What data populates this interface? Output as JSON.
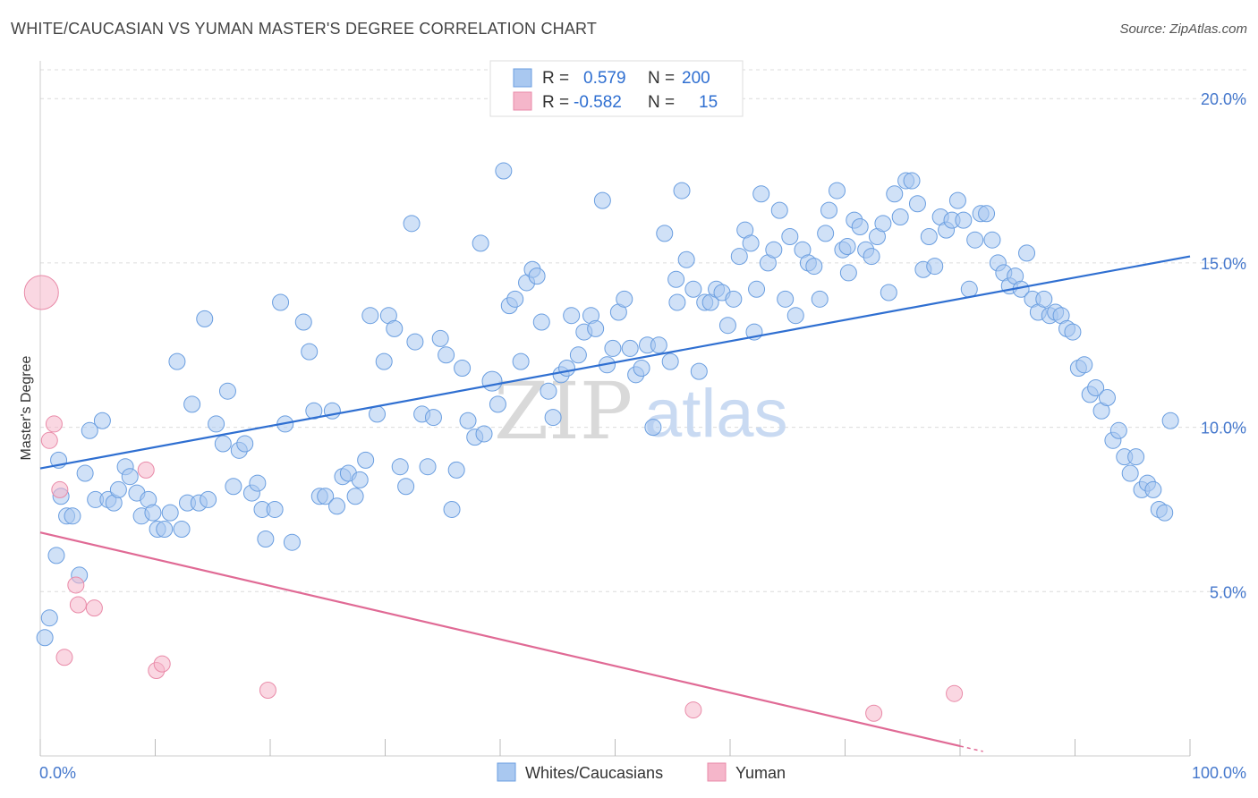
{
  "title": "WHITE/CAUCASIAN VS YUMAN MASTER'S DEGREE CORRELATION CHART",
  "source": "Source: ZipAtlas.com",
  "watermark": {
    "left": "ZIP",
    "right": "atlas"
  },
  "legend": {
    "rows": [
      {
        "r_label": "R =",
        "r_value": "0.579",
        "n_label": "N =",
        "n_value": "200",
        "color": "#a9c8f0"
      },
      {
        "r_label": "R =",
        "r_value": "-0.582",
        "n_label": "N =",
        "n_value": "15",
        "color": "#f5b6ca"
      }
    ]
  },
  "bottom_legend": [
    {
      "label": "Whites/Caucasians",
      "color": "#a9c8f0"
    },
    {
      "label": "Yuman",
      "color": "#f5b6ca"
    }
  ],
  "chart_data": {
    "type": "scatter",
    "title": "WHITE/CAUCASIAN VS YUMAN MASTER'S DEGREE CORRELATION CHART",
    "xlabel": "",
    "ylabel": "Master's Degree",
    "xlim": [
      0,
      100
    ],
    "ylim": [
      0,
      20
    ],
    "x_tick_labels": [
      "0.0%",
      "100.0%"
    ],
    "y_ticks": [
      5,
      10,
      15,
      20
    ],
    "y_tick_labels": [
      "5.0%",
      "10.0%",
      "15.0%",
      "20.0%"
    ],
    "grid": true,
    "legend_position": "top-center",
    "series": [
      {
        "name": "Whites/Caucasians",
        "color": "#a9c8f0",
        "stroke": "#6a9ee0",
        "trend": {
          "x": [
            0,
            100
          ],
          "y": [
            8.75,
            15.2
          ],
          "color": "#2f6fd1"
        },
        "points": [
          [
            0.4,
            3.6
          ],
          [
            0.8,
            4.2
          ],
          [
            1.4,
            6.1
          ],
          [
            1.6,
            9.0
          ],
          [
            1.8,
            7.9
          ],
          [
            2.3,
            7.3
          ],
          [
            2.8,
            7.3
          ],
          [
            3.4,
            5.5
          ],
          [
            3.9,
            8.6
          ],
          [
            4.3,
            9.9
          ],
          [
            4.8,
            7.8
          ],
          [
            5.4,
            10.2
          ],
          [
            5.9,
            7.8
          ],
          [
            6.4,
            7.7
          ],
          [
            6.8,
            8.1
          ],
          [
            7.4,
            8.8
          ],
          [
            7.8,
            8.5
          ],
          [
            8.4,
            8.0
          ],
          [
            8.8,
            7.3
          ],
          [
            9.4,
            7.8
          ],
          [
            9.8,
            7.4
          ],
          [
            10.2,
            6.9
          ],
          [
            10.8,
            6.9
          ],
          [
            11.3,
            7.4
          ],
          [
            11.9,
            12.0
          ],
          [
            12.3,
            6.9
          ],
          [
            12.8,
            7.7
          ],
          [
            13.2,
            10.7
          ],
          [
            13.8,
            7.7
          ],
          [
            14.3,
            13.3
          ],
          [
            14.6,
            7.8
          ],
          [
            15.3,
            10.1
          ],
          [
            15.9,
            9.5
          ],
          [
            16.3,
            11.1
          ],
          [
            16.8,
            8.2
          ],
          [
            17.3,
            9.3
          ],
          [
            17.8,
            9.5
          ],
          [
            18.4,
            8.0
          ],
          [
            18.9,
            8.3
          ],
          [
            19.3,
            7.5
          ],
          [
            19.6,
            6.6
          ],
          [
            20.4,
            7.5
          ],
          [
            20.9,
            13.8
          ],
          [
            21.3,
            10.1
          ],
          [
            21.9,
            6.5
          ],
          [
            22.9,
            13.2
          ],
          [
            23.4,
            12.3
          ],
          [
            23.8,
            10.5
          ],
          [
            24.3,
            7.9
          ],
          [
            24.8,
            7.9
          ],
          [
            25.4,
            10.5
          ],
          [
            25.8,
            7.6
          ],
          [
            26.3,
            8.5
          ],
          [
            26.8,
            8.6
          ],
          [
            27.4,
            7.9
          ],
          [
            27.8,
            8.4
          ],
          [
            28.3,
            9.0
          ],
          [
            28.7,
            13.4
          ],
          [
            29.3,
            10.4
          ],
          [
            29.9,
            12.0
          ],
          [
            30.3,
            13.4
          ],
          [
            30.8,
            13.0
          ],
          [
            31.3,
            8.8
          ],
          [
            31.8,
            8.2
          ],
          [
            32.3,
            16.2
          ],
          [
            32.6,
            12.6
          ],
          [
            33.2,
            10.4
          ],
          [
            33.7,
            8.8
          ],
          [
            34.2,
            10.3
          ],
          [
            34.8,
            12.7
          ],
          [
            35.3,
            12.2
          ],
          [
            35.8,
            7.5
          ],
          [
            36.2,
            8.7
          ],
          [
            36.7,
            11.8
          ],
          [
            37.2,
            10.2
          ],
          [
            37.8,
            9.7
          ],
          [
            38.3,
            15.6
          ],
          [
            38.6,
            9.8
          ],
          [
            39.3,
            11.4
          ],
          [
            39.8,
            10.7
          ],
          [
            40.3,
            17.8
          ],
          [
            40.8,
            13.7
          ],
          [
            41.3,
            13.9
          ],
          [
            41.8,
            12.0
          ],
          [
            42.3,
            14.4
          ],
          [
            42.8,
            14.8
          ],
          [
            43.2,
            14.6
          ],
          [
            43.6,
            13.2
          ],
          [
            44.2,
            11.1
          ],
          [
            44.6,
            10.3
          ],
          [
            45.3,
            11.6
          ],
          [
            45.8,
            11.8
          ],
          [
            46.2,
            13.4
          ],
          [
            46.8,
            12.2
          ],
          [
            47.3,
            12.9
          ],
          [
            47.9,
            13.4
          ],
          [
            48.3,
            13.0
          ],
          [
            48.9,
            16.9
          ],
          [
            49.3,
            11.9
          ],
          [
            49.8,
            12.4
          ],
          [
            50.3,
            13.5
          ],
          [
            50.8,
            13.9
          ],
          [
            51.3,
            12.4
          ],
          [
            51.8,
            11.6
          ],
          [
            52.3,
            11.8
          ],
          [
            52.8,
            12.5
          ],
          [
            53.3,
            10.0
          ],
          [
            53.8,
            12.5
          ],
          [
            54.3,
            15.9
          ],
          [
            54.8,
            12.0
          ],
          [
            55.3,
            14.5
          ],
          [
            55.8,
            17.2
          ],
          [
            56.2,
            15.1
          ],
          [
            56.8,
            14.2
          ],
          [
            57.3,
            11.7
          ],
          [
            57.8,
            13.8
          ],
          [
            58.3,
            13.8
          ],
          [
            58.8,
            14.2
          ],
          [
            59.3,
            14.1
          ],
          [
            59.8,
            13.1
          ],
          [
            60.3,
            13.9
          ],
          [
            60.8,
            15.2
          ],
          [
            61.3,
            16.0
          ],
          [
            61.8,
            15.6
          ],
          [
            62.3,
            14.2
          ],
          [
            62.7,
            17.1
          ],
          [
            63.3,
            15.0
          ],
          [
            63.8,
            15.4
          ],
          [
            64.3,
            16.6
          ],
          [
            64.8,
            13.9
          ],
          [
            65.2,
            15.8
          ],
          [
            65.7,
            13.4
          ],
          [
            66.3,
            15.4
          ],
          [
            66.8,
            15.0
          ],
          [
            67.3,
            14.9
          ],
          [
            67.8,
            13.9
          ],
          [
            68.3,
            15.9
          ],
          [
            68.6,
            16.6
          ],
          [
            69.3,
            17.2
          ],
          [
            69.8,
            15.4
          ],
          [
            70.3,
            14.7
          ],
          [
            70.8,
            16.3
          ],
          [
            71.3,
            16.1
          ],
          [
            71.8,
            15.4
          ],
          [
            72.3,
            15.2
          ],
          [
            72.8,
            15.8
          ],
          [
            73.3,
            16.2
          ],
          [
            73.8,
            14.1
          ],
          [
            74.3,
            17.1
          ],
          [
            74.8,
            16.4
          ],
          [
            75.3,
            17.5
          ],
          [
            75.8,
            17.5
          ],
          [
            76.3,
            16.8
          ],
          [
            76.8,
            14.8
          ],
          [
            77.3,
            15.8
          ],
          [
            77.8,
            14.9
          ],
          [
            78.3,
            16.4
          ],
          [
            78.8,
            16.0
          ],
          [
            79.3,
            16.3
          ],
          [
            79.8,
            16.9
          ],
          [
            80.3,
            16.3
          ],
          [
            80.8,
            14.2
          ],
          [
            81.3,
            15.7
          ],
          [
            81.8,
            16.5
          ],
          [
            82.3,
            16.5
          ],
          [
            82.8,
            15.7
          ],
          [
            83.3,
            15.0
          ],
          [
            83.8,
            14.7
          ],
          [
            84.3,
            14.3
          ],
          [
            84.8,
            14.6
          ],
          [
            85.3,
            14.2
          ],
          [
            85.8,
            15.3
          ],
          [
            86.3,
            13.9
          ],
          [
            86.8,
            13.5
          ],
          [
            87.3,
            13.9
          ],
          [
            87.8,
            13.4
          ],
          [
            88.3,
            13.5
          ],
          [
            88.8,
            13.4
          ],
          [
            89.3,
            13.0
          ],
          [
            89.8,
            12.9
          ],
          [
            90.3,
            11.8
          ],
          [
            90.8,
            11.9
          ],
          [
            91.3,
            11.0
          ],
          [
            91.8,
            11.2
          ],
          [
            92.3,
            10.5
          ],
          [
            92.8,
            10.9
          ],
          [
            93.3,
            9.6
          ],
          [
            93.8,
            9.9
          ],
          [
            94.3,
            9.1
          ],
          [
            94.8,
            8.6
          ],
          [
            95.3,
            9.1
          ],
          [
            95.8,
            8.1
          ],
          [
            96.3,
            8.3
          ],
          [
            96.8,
            8.1
          ],
          [
            97.3,
            7.5
          ],
          [
            97.8,
            7.4
          ],
          [
            98.3,
            10.2
          ],
          [
            55.4,
            13.8
          ],
          [
            62.1,
            12.9
          ],
          [
            70.2,
            15.5
          ]
        ]
      },
      {
        "name": "Yuman",
        "color": "#f5b6ca",
        "stroke": "#e98aa8",
        "trend": {
          "x": [
            0,
            80
          ],
          "y": [
            6.8,
            0.3
          ],
          "color": "#e06a95"
        },
        "points": [
          [
            0.1,
            14.1
          ],
          [
            0.8,
            9.6
          ],
          [
            1.2,
            10.1
          ],
          [
            1.7,
            8.1
          ],
          [
            2.1,
            3.0
          ],
          [
            3.1,
            5.2
          ],
          [
            3.3,
            4.6
          ],
          [
            4.7,
            4.5
          ],
          [
            9.2,
            8.7
          ],
          [
            10.1,
            2.6
          ],
          [
            10.6,
            2.8
          ],
          [
            19.8,
            2.0
          ],
          [
            56.8,
            1.4
          ],
          [
            72.5,
            1.3
          ],
          [
            79.5,
            1.9
          ]
        ]
      }
    ]
  }
}
